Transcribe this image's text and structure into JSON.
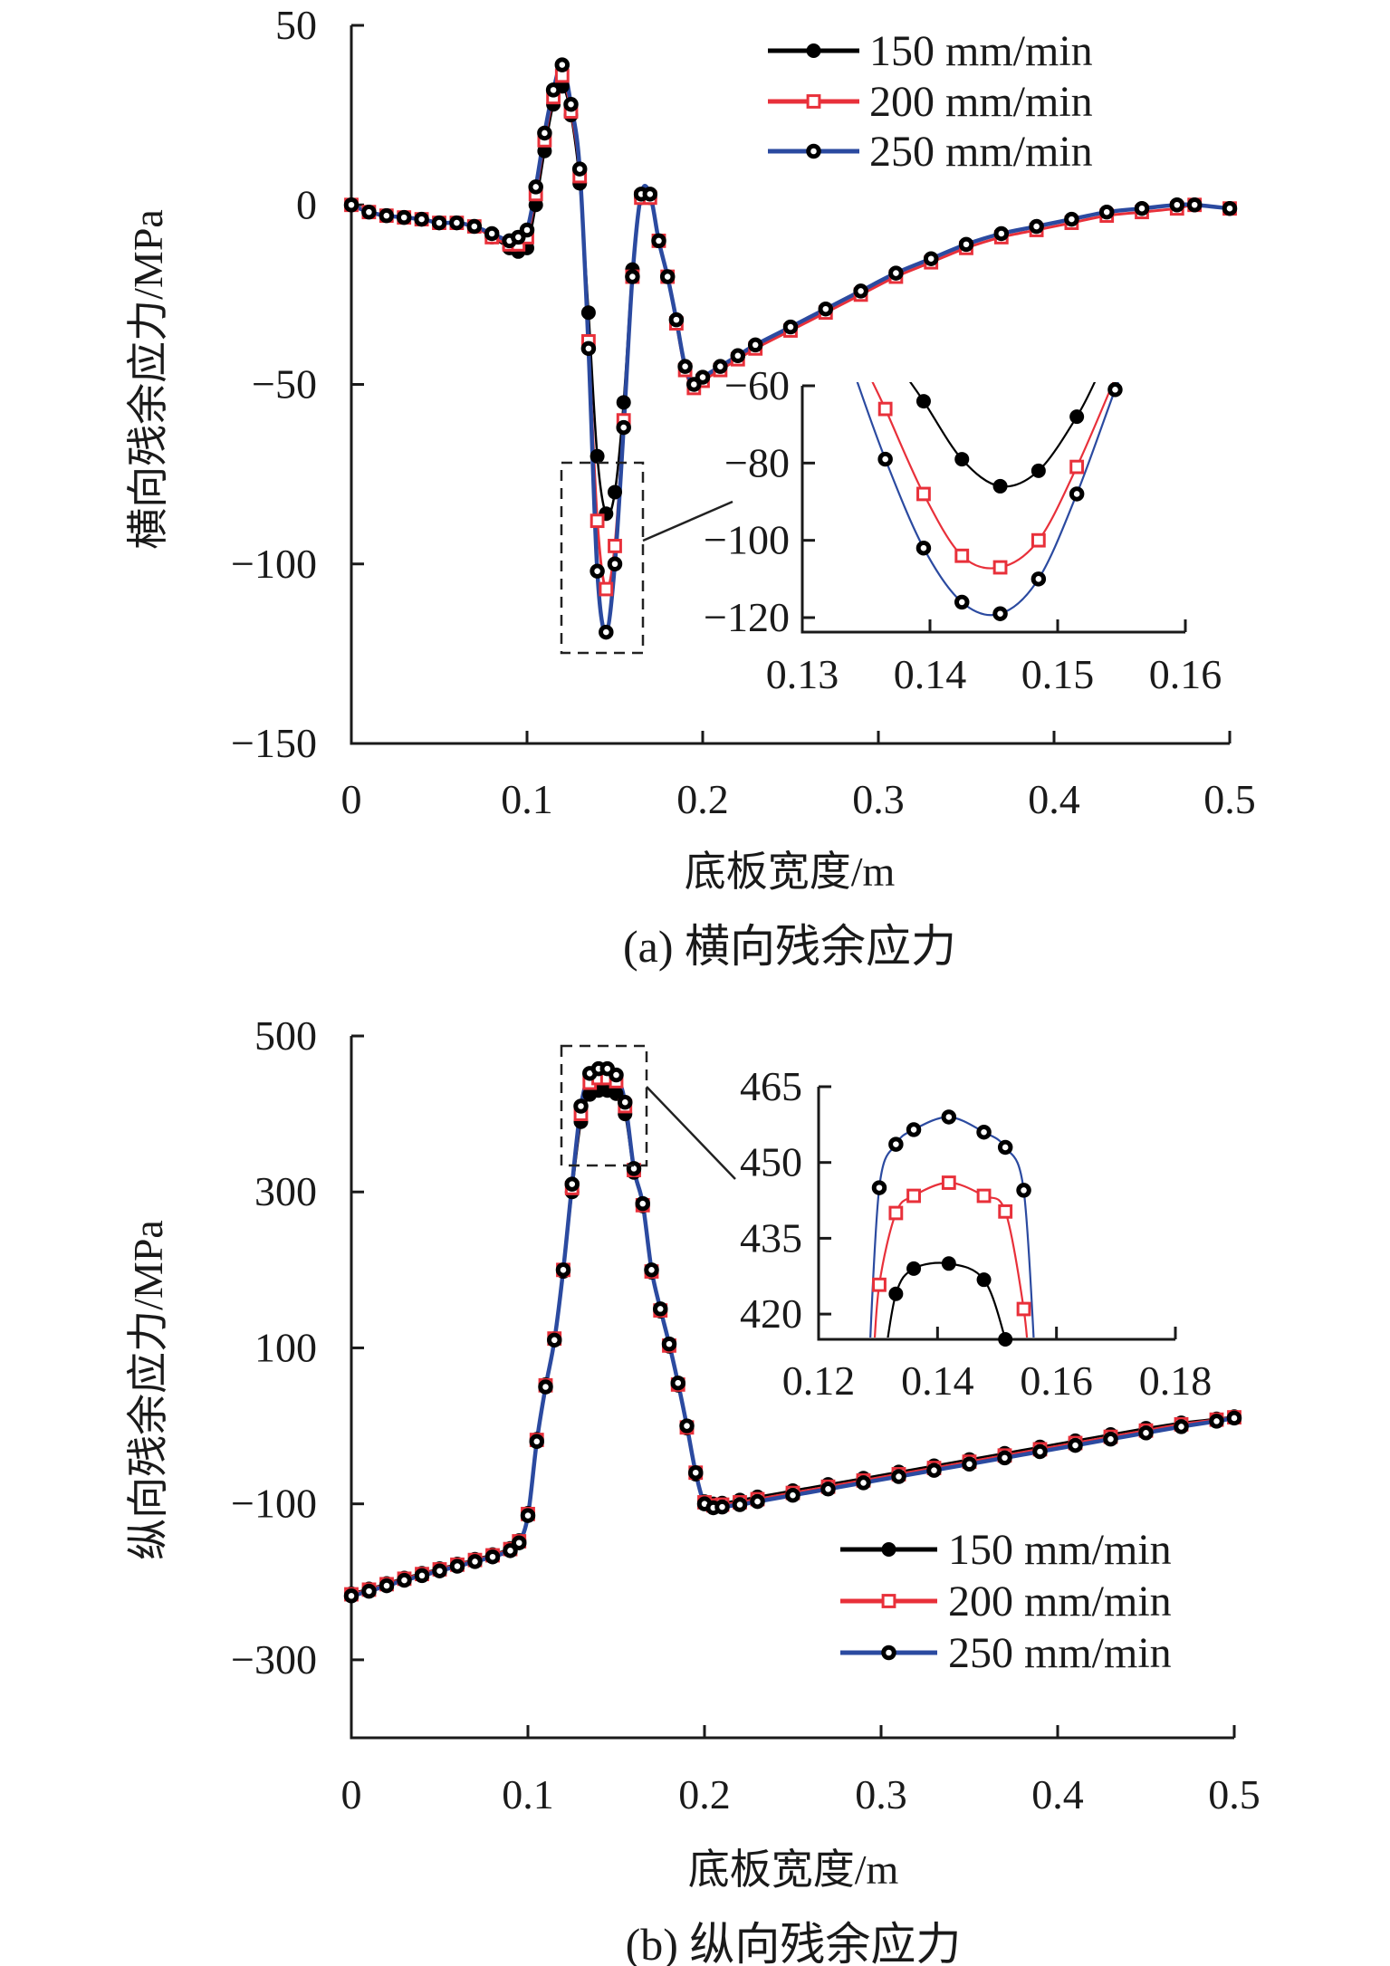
{
  "colors": {
    "s150": "#000000",
    "s200": "#e8303a",
    "s250": "#2b4aa0",
    "axis": "#1a1a1a"
  },
  "chart_data": [
    {
      "type": "line",
      "caption": "(a) 横向残余应力",
      "xlabel": "底板宽度/m",
      "ylabel": "横向残余应力/MPa",
      "xlim": [
        0,
        0.5
      ],
      "ylim": [
        -150,
        50
      ],
      "xticks": [
        "0",
        "0.1",
        "0.2",
        "0.3",
        "0.4",
        "0.5"
      ],
      "xtick_values": [
        0,
        0.1,
        0.2,
        0.3,
        0.4,
        0.5
      ],
      "yticks": [
        "50",
        "0",
        "−50",
        "−100",
        "−150"
      ],
      "ytick_values": [
        50,
        0,
        -50,
        -100,
        -150
      ],
      "legend": [
        "150 mm/min",
        "200 mm/min",
        "250 mm/min"
      ],
      "legend_position": "top-right",
      "x": [
        0,
        0.01,
        0.02,
        0.03,
        0.04,
        0.05,
        0.06,
        0.07,
        0.08,
        0.09,
        0.095,
        0.1,
        0.105,
        0.11,
        0.115,
        0.12,
        0.125,
        0.13,
        0.135,
        0.14,
        0.145,
        0.15,
        0.155,
        0.16,
        0.165,
        0.17,
        0.175,
        0.18,
        0.185,
        0.19,
        0.195,
        0.2,
        0.21,
        0.22,
        0.23,
        0.25,
        0.27,
        0.29,
        0.31,
        0.33,
        0.35,
        0.37,
        0.39,
        0.41,
        0.43,
        0.45,
        0.47,
        0.48,
        0.5
      ],
      "series": [
        {
          "name": "150 mm/min",
          "values": [
            0,
            -2,
            -3,
            -3.5,
            -4,
            -5,
            -5,
            -6,
            -9,
            -12,
            -13,
            -12,
            0,
            15,
            28,
            33,
            25,
            6,
            -30,
            -70,
            -86,
            -80,
            -55,
            -18,
            2,
            2,
            -10,
            -20,
            -32,
            -45,
            -50,
            -48,
            -45,
            -42,
            -39,
            -34,
            -29,
            -24,
            -19,
            -15,
            -11,
            -8,
            -6,
            -4,
            -2,
            -1,
            0,
            0,
            -1
          ]
        },
        {
          "name": "200 mm/min",
          "values": [
            0,
            -2,
            -3,
            -3.5,
            -4,
            -5,
            -5,
            -6,
            -9,
            -11,
            -11,
            -9,
            3,
            18,
            30,
            36,
            26,
            8,
            -38,
            -88,
            -107,
            -95,
            -60,
            -20,
            2,
            2,
            -10,
            -20,
            -33,
            -46,
            -51,
            -49,
            -46,
            -43,
            -40,
            -35,
            -30,
            -25,
            -20,
            -16,
            -12,
            -9,
            -7,
            -5,
            -3,
            -2,
            -1,
            0,
            -1
          ]
        },
        {
          "name": "250 mm/min",
          "values": [
            0,
            -2,
            -3,
            -3.5,
            -4,
            -5,
            -5,
            -6,
            -8,
            -10,
            -9,
            -7,
            5,
            20,
            32,
            39,
            28,
            10,
            -40,
            -102,
            -119,
            -100,
            -62,
            -20,
            3,
            3,
            -10,
            -20,
            -32,
            -45,
            -50,
            -48,
            -45,
            -42,
            -39,
            -34,
            -29,
            -24,
            -19,
            -15,
            -11,
            -8,
            -6,
            -4,
            -2,
            -1,
            0,
            0,
            -1
          ]
        }
      ],
      "inset": {
        "xlim": [
          0.13,
          0.16
        ],
        "ylim": [
          -123.75,
          -60
        ],
        "xticks": [
          "0.13",
          "0.14",
          "0.15",
          "0.16"
        ],
        "xtick_values": [
          0.13,
          0.14,
          0.15,
          0.16
        ],
        "yticks": [
          "−60",
          "−80",
          "−100",
          "−120"
        ],
        "ytick_values": [
          -60,
          -80,
          -100,
          -120
        ],
        "zoom_region": {
          "x": [
            0.122,
            0.1455
          ],
          "y": [
            -124,
            -70
          ]
        },
        "series": [
          {
            "name": "150 mm/min",
            "x": [
              0.1395,
              0.1425,
              0.1455,
              0.1485,
              0.1515
            ],
            "values": [
              -64,
              -79,
              -86,
              -82,
              -68
            ],
            "curve_x": [
              0.1378,
              0.1395,
              0.1425,
              0.1455,
              0.1485,
              0.1515,
              0.1532
            ],
            "curve_y": [
              -56,
              -64,
              -79,
              -86,
              -82,
              -68,
              -57
            ]
          },
          {
            "name": "200 mm/min",
            "x": [
              0.1365,
              0.1395,
              0.1425,
              0.1455,
              0.1485,
              0.1515
            ],
            "values": [
              -66,
              -88,
              -104,
              -107,
              -100,
              -81
            ],
            "curve_x": [
              0.1352,
              0.1365,
              0.1395,
              0.1425,
              0.1455,
              0.1485,
              0.1515,
              0.1545
            ],
            "curve_y": [
              -57,
              -66,
              -88,
              -104,
              -107,
              -100,
              -81,
              -58
            ]
          },
          {
            "name": "250 mm/min",
            "x": [
              0.1365,
              0.1395,
              0.1425,
              0.1455,
              0.1485,
              0.1515,
              0.1545
            ],
            "values": [
              -79,
              -102,
              -116,
              -119,
              -110,
              -88,
              -61
            ],
            "curve_x": [
              0.1342,
              0.1365,
              0.1395,
              0.1425,
              0.1455,
              0.1485,
              0.1515,
              0.1545,
              0.1552
            ],
            "curve_y": [
              -58,
              -79,
              -102,
              -116,
              -119,
              -110,
              -88,
              -61,
              -56
            ]
          }
        ]
      }
    },
    {
      "type": "line",
      "caption": "(b) 纵向残余应力",
      "xlabel": "底板宽度/m",
      "ylabel": "纵向残余应力/MPa",
      "xlim": [
        0,
        0.5
      ],
      "ylim": [
        -400,
        500
      ],
      "xticks": [
        "0",
        "0.1",
        "0.2",
        "0.3",
        "0.4",
        "0.5"
      ],
      "xtick_values": [
        0,
        0.1,
        0.2,
        0.3,
        0.4,
        0.5
      ],
      "yticks": [
        "500",
        "300",
        "100",
        "−100",
        "−300"
      ],
      "ytick_values": [
        500,
        300,
        100,
        -100,
        -300
      ],
      "legend": [
        "150 mm/min",
        "200 mm/min",
        "250 mm/min"
      ],
      "legend_position": "bottom-right",
      "x": [
        0,
        0.01,
        0.02,
        0.03,
        0.04,
        0.05,
        0.06,
        0.07,
        0.08,
        0.09,
        0.095,
        0.1,
        0.105,
        0.11,
        0.115,
        0.12,
        0.125,
        0.13,
        0.135,
        0.14,
        0.145,
        0.15,
        0.155,
        0.16,
        0.165,
        0.17,
        0.175,
        0.18,
        0.185,
        0.19,
        0.195,
        0.2,
        0.205,
        0.21,
        0.22,
        0.23,
        0.25,
        0.27,
        0.29,
        0.31,
        0.33,
        0.35,
        0.37,
        0.39,
        0.41,
        0.43,
        0.45,
        0.47,
        0.49,
        0.5
      ],
      "series": [
        {
          "name": "150 mm/min",
          "values": [
            -215,
            -209,
            -202,
            -195,
            -189,
            -183,
            -177,
            -171,
            -165,
            -157,
            -147,
            -112,
            -17,
            53,
            112,
            198,
            300,
            390,
            425,
            430,
            430,
            426,
            400,
            325,
            282,
            197,
            147,
            102,
            52,
            -3,
            -62,
            -97,
            -100,
            -99,
            -95,
            -91,
            -83,
            -75,
            -67,
            -59,
            -51,
            -43,
            -35,
            -27,
            -19,
            -11,
            -3,
            4,
            9,
            12
          ]
        },
        {
          "name": "200 mm/min",
          "values": [
            -216,
            -210,
            -203,
            -196,
            -190,
            -184,
            -178,
            -172,
            -166,
            -158,
            -148,
            -113,
            -18,
            52,
            112,
            200,
            305,
            400,
            440,
            446,
            446,
            442,
            410,
            328,
            283,
            198,
            148,
            103,
            53,
            -2,
            -60,
            -98,
            -102,
            -101,
            -98,
            -94,
            -86,
            -78,
            -70,
            -62,
            -54,
            -46,
            -38,
            -30,
            -22,
            -14,
            -6,
            2,
            8,
            11
          ]
        },
        {
          "name": "250 mm/min",
          "values": [
            -218,
            -212,
            -205,
            -198,
            -192,
            -186,
            -180,
            -174,
            -168,
            -160,
            -150,
            -115,
            -20,
            50,
            110,
            200,
            310,
            410,
            452,
            458,
            458,
            450,
            415,
            330,
            285,
            200,
            150,
            105,
            55,
            0,
            -60,
            -100,
            -105,
            -104,
            -101,
            -97,
            -89,
            -81,
            -73,
            -65,
            -57,
            -49,
            -41,
            -33,
            -25,
            -17,
            -9,
            -1,
            6,
            10
          ]
        }
      ],
      "inset": {
        "xlim": [
          0.12,
          0.18
        ],
        "ylim": [
          415,
          465
        ],
        "xticks": [
          "0.12",
          "0.14",
          "0.16",
          "0.18"
        ],
        "xtick_values": [
          0.12,
          0.14,
          0.16,
          0.18
        ],
        "yticks": [
          "465",
          "450",
          "435",
          "420"
        ],
        "ytick_values": [
          465,
          450,
          435,
          420
        ],
        "zoom_region": {
          "x": [
            0.12,
            0.169
          ],
          "y": [
            380,
            490
          ]
        },
        "series": [
          {
            "name": "150 mm/min",
            "x": [
              0.133,
              0.136,
              0.1419,
              0.1478,
              0.1514
            ],
            "values": [
              424,
              429,
              430,
              426.8,
              415
            ],
            "curve_x": [
              0.131,
              0.133,
              0.136,
              0.1419,
              0.1478,
              0.1514,
              0.1525
            ],
            "curve_y": [
              410,
              424,
              429,
              430,
              426.8,
              415,
              408
            ]
          },
          {
            "name": "200 mm/min",
            "x": [
              0.1302,
              0.133,
              0.136,
              0.1419,
              0.1478,
              0.1514,
              0.1545
            ],
            "values": [
              425.8,
              440,
              443.4,
              446,
              443.4,
              440.3,
              421
            ],
            "curve_x": [
              0.1292,
              0.1302,
              0.133,
              0.136,
              0.1419,
              0.1478,
              0.1514,
              0.1545,
              0.1555
            ],
            "curve_y": [
              410,
              425.8,
              440,
              443.4,
              446,
              443.4,
              440.3,
              421,
              408
            ]
          },
          {
            "name": "250 mm/min",
            "x": [
              0.1302,
              0.133,
              0.136,
              0.1419,
              0.1478,
              0.1514,
              0.1545
            ],
            "values": [
              445,
              453.6,
              456.5,
              459,
              456,
              453,
              444.5
            ],
            "curve_x": [
              0.1284,
              0.1302,
              0.133,
              0.136,
              0.1419,
              0.1478,
              0.1514,
              0.1545,
              0.1565
            ],
            "curve_y": [
              408,
              445,
              453.6,
              456.5,
              459,
              456,
              453,
              444.5,
              408
            ]
          }
        ]
      }
    }
  ]
}
